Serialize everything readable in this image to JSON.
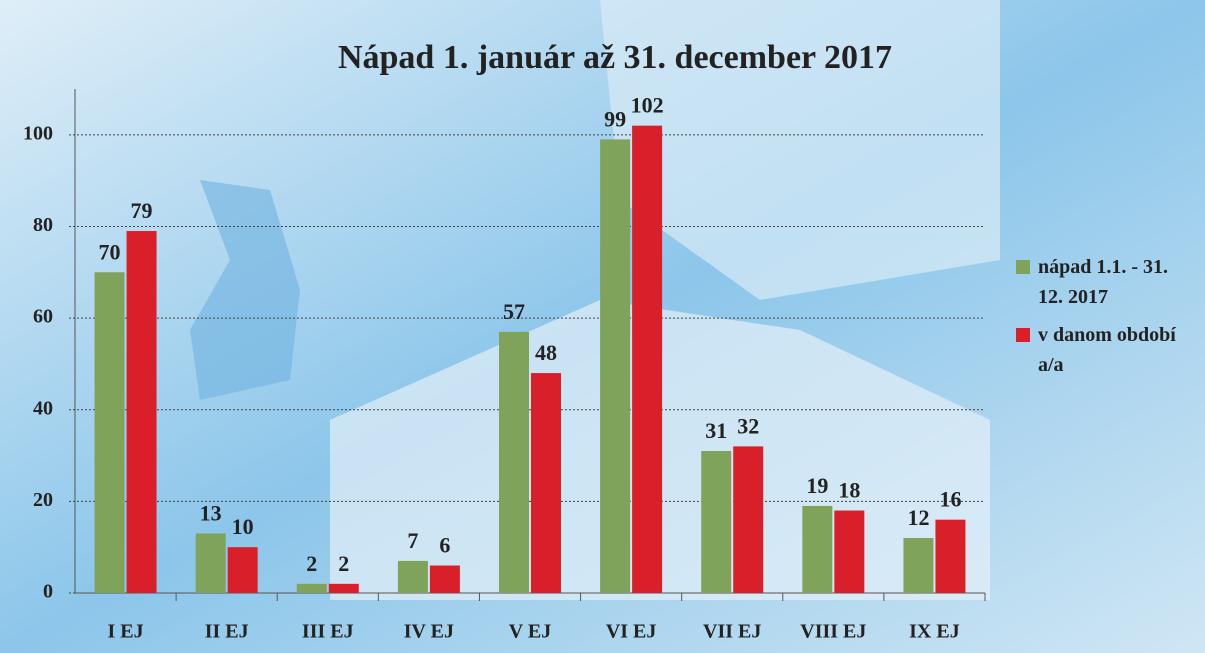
{
  "chart_data": {
    "type": "bar",
    "title": "Nápad 1. január až 31. december 2017",
    "categories": [
      "I EJ",
      "II EJ",
      "III EJ",
      "IV EJ",
      "V EJ",
      "VI EJ",
      "VII EJ",
      "VIII EJ",
      "IX EJ"
    ],
    "series": [
      {
        "name": "nápad 1.1. - 31. 12. 2017",
        "color": "#7fa35a",
        "values": [
          70,
          13,
          2,
          7,
          57,
          99,
          31,
          19,
          12
        ]
      },
      {
        "name": "v danom období a/a",
        "color": "#d9202a",
        "values": [
          79,
          10,
          2,
          6,
          48,
          102,
          32,
          18,
          16
        ]
      }
    ],
    "ylim": [
      0,
      110
    ],
    "yticks": [
      0,
      20,
      40,
      60,
      80,
      100
    ],
    "grid": true,
    "legend": "right"
  }
}
